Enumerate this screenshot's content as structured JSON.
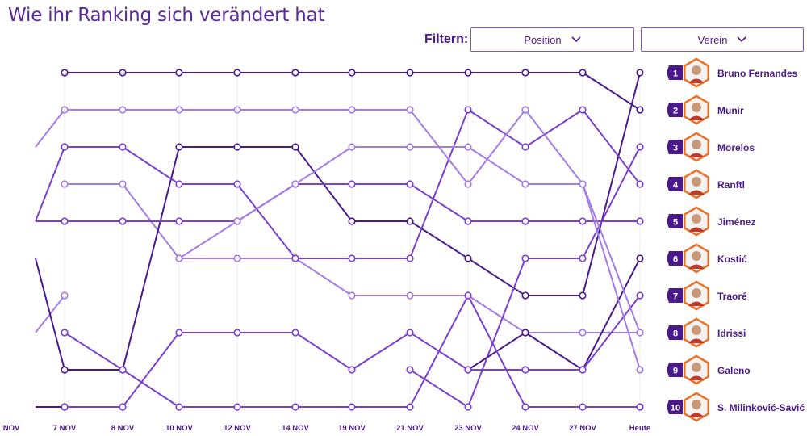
{
  "page": {
    "title": "Wie ihr Ranking sich verändert hat",
    "filter_label": "Filtern:",
    "filters": [
      {
        "label": "Position"
      },
      {
        "label": "Verein"
      }
    ]
  },
  "colors": {
    "dark": "#4a1a8c",
    "mid": "#7b3fd1",
    "light": "#a57ce6",
    "badge_outline": "#e8742a",
    "grid": "#eeeeee"
  },
  "chart_data": {
    "type": "line",
    "title": "Wie ihr Ranking sich verändert hat",
    "x": [
      "NOV",
      "7 NOV",
      "8 NOV",
      "10 NOV",
      "12 NOV",
      "14 NOV",
      "19 NOV",
      "21 NOV",
      "23 NOV",
      "24 NOV",
      "27 NOV",
      "Heute"
    ],
    "y_inverted": true,
    "ylim": [
      1,
      10
    ],
    "grid": true,
    "series": [
      {
        "name": "Bruno Fernandes",
        "rank": 1,
        "color": "dark",
        "values": [
          6,
          9,
          9,
          3,
          3,
          3,
          5,
          5,
          6,
          7,
          7,
          1
        ]
      },
      {
        "name": "Munir",
        "rank": 2,
        "color": "dark",
        "values": [
          null,
          1,
          1,
          1,
          1,
          1,
          1,
          1,
          1,
          1,
          1,
          2
        ]
      },
      {
        "name": "Morelos",
        "rank": 3,
        "color": "mid",
        "values": [
          null,
          null,
          null,
          null,
          null,
          null,
          null,
          9,
          10,
          6,
          6,
          3
        ]
      },
      {
        "name": "Ranftl",
        "rank": 4,
        "color": "mid",
        "values": [
          null,
          3,
          3,
          4,
          4,
          6,
          6,
          6,
          2,
          3,
          2,
          4
        ]
      },
      {
        "name": "Jiménez",
        "rank": 5,
        "color": "mid",
        "values": [
          5,
          5,
          5,
          5,
          5,
          4,
          4,
          4,
          5,
          5,
          5,
          5
        ]
      },
      {
        "name": "Kostić",
        "rank": 6,
        "color": "dark",
        "values": [
          null,
          null,
          null,
          null,
          null,
          null,
          null,
          null,
          9,
          8,
          9,
          6
        ]
      },
      {
        "name": "Traoré",
        "rank": 7,
        "color": "mid",
        "values": [
          null,
          10,
          10,
          8,
          8,
          8,
          9,
          8,
          9,
          9,
          9,
          7
        ]
      },
      {
        "name": "Idrissi",
        "rank": 8,
        "color": "light",
        "values": [
          null,
          2,
          2,
          2,
          2,
          2,
          2,
          2,
          4,
          2,
          4,
          8
        ]
      },
      {
        "name": "Galeno",
        "rank": 9,
        "color": "light",
        "values": [
          null,
          null,
          null,
          6,
          5,
          4,
          3,
          3,
          3,
          4,
          4,
          9
        ]
      },
      {
        "name": "S. Milinković-Savić",
        "rank": 10,
        "color": "mid",
        "values": [
          null,
          8,
          9,
          10,
          10,
          10,
          10,
          10,
          7,
          10,
          10,
          10
        ]
      }
    ],
    "fragments": [
      {
        "color": "light",
        "values": [
          3,
          2
        ]
      },
      {
        "color": "mid",
        "values": [
          5,
          3
        ]
      },
      {
        "color": "light",
        "values": [
          8,
          7
        ]
      },
      {
        "color": "dark",
        "values": [
          10,
          10
        ]
      },
      {
        "color": "light",
        "values": [
          null,
          4,
          4,
          6,
          6,
          6,
          7,
          7,
          7,
          8,
          8,
          8
        ]
      }
    ]
  }
}
